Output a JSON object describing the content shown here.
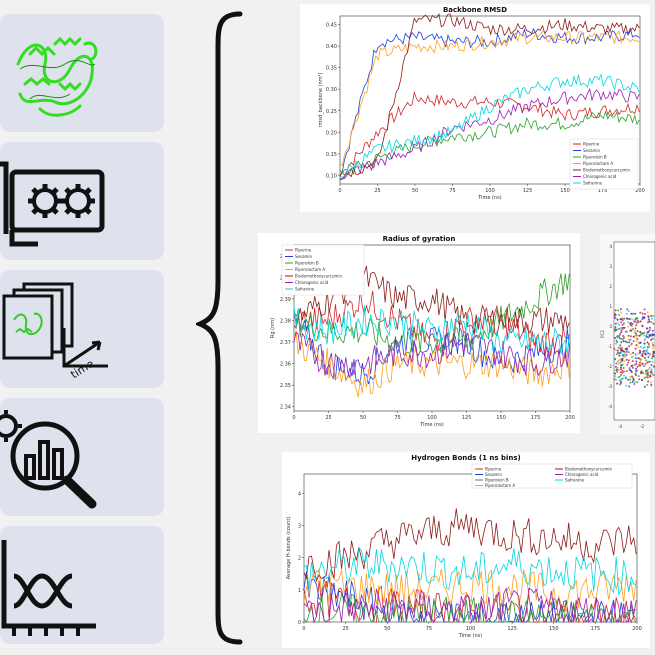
{
  "left_panels": [
    {
      "icon": "protein-structure-icon"
    },
    {
      "icon": "gpu-card-icon"
    },
    {
      "icon": "trajectory-frames-icon",
      "label": "time"
    },
    {
      "icon": "analysis-magnifier-icon"
    },
    {
      "icon": "line-graph-icon"
    }
  ],
  "colors": {
    "Piperine": "#d62728",
    "Sesamin": "#1f3fe0",
    "Piperolein B": "#2ca02c",
    "Piperolactam A": "#ff9f1c",
    "Bisdemethoxycurcumin": "#8c1d18",
    "Chlorogenic acid": "#9b1fb0",
    "Safranine": "#00d8e0"
  },
  "chart_data": [
    {
      "id": "rmsd",
      "type": "line",
      "title": "Backbone RMSD",
      "xlabel": "Time (ns)",
      "ylabel": "rmsd_backbone (nm²)",
      "xlim": [
        0,
        200
      ],
      "ylim": [
        0.08,
        0.47
      ],
      "xticks": [
        "0",
        "25",
        "50",
        "75",
        "100",
        "125",
        "150",
        "175",
        "200"
      ],
      "yticks": [
        "0.10",
        "0.15",
        "0.20",
        "0.25",
        "0.30",
        "0.35",
        "0.40",
        "0.45"
      ],
      "legend": [
        "Piperine",
        "Sesamin",
        "Piperolein B",
        "Piperolactam A",
        "Bisdemethoxycurcumin",
        "Chlorogenic acid",
        "Safranine"
      ],
      "legend_position": "bottom-right",
      "series": [
        {
          "name": "Piperine",
          "x": [
            0,
            25,
            50,
            75,
            100,
            125,
            150,
            175,
            200
          ],
          "values": [
            0.1,
            0.2,
            0.28,
            0.27,
            0.27,
            0.26,
            0.24,
            0.25,
            0.26
          ]
        },
        {
          "name": "Sesamin",
          "x": [
            0,
            25,
            50,
            75,
            100,
            125,
            150,
            175,
            200
          ],
          "values": [
            0.1,
            0.41,
            0.42,
            0.41,
            0.41,
            0.43,
            0.42,
            0.42,
            0.43
          ]
        },
        {
          "name": "Piperolein B",
          "x": [
            0,
            25,
            50,
            75,
            100,
            125,
            150,
            175,
            200
          ],
          "values": [
            0.1,
            0.14,
            0.17,
            0.19,
            0.2,
            0.22,
            0.22,
            0.24,
            0.23
          ]
        },
        {
          "name": "Piperolactam A",
          "x": [
            0,
            25,
            50,
            75,
            100,
            125,
            150,
            175,
            200
          ],
          "values": [
            0.12,
            0.38,
            0.4,
            0.4,
            0.41,
            0.42,
            0.42,
            0.42,
            0.42
          ]
        },
        {
          "name": "Bisdemethoxycurcumin",
          "x": [
            0,
            25,
            50,
            75,
            100,
            125,
            150,
            175,
            200
          ],
          "values": [
            0.1,
            0.13,
            0.46,
            0.46,
            0.44,
            0.44,
            0.45,
            0.44,
            0.44
          ]
        },
        {
          "name": "Chlorogenic acid",
          "x": [
            0,
            25,
            50,
            75,
            100,
            125,
            150,
            175,
            200
          ],
          "values": [
            0.1,
            0.13,
            0.16,
            0.21,
            0.23,
            0.26,
            0.28,
            0.29,
            0.28
          ]
        },
        {
          "name": "Safranine",
          "x": [
            0,
            25,
            50,
            75,
            100,
            125,
            150,
            175,
            200
          ],
          "values": [
            0.1,
            0.16,
            0.18,
            0.2,
            0.26,
            0.3,
            0.32,
            0.32,
            0.3
          ]
        }
      ]
    },
    {
      "id": "rg",
      "type": "line",
      "title": "Radius of gyration",
      "xlabel": "Time (ns)",
      "ylabel": "Rg (nm)",
      "xlim": [
        0,
        200
      ],
      "ylim": [
        2.338,
        2.415
      ],
      "xticks": [
        "0",
        "25",
        "50",
        "75",
        "100",
        "125",
        "150",
        "175",
        "200"
      ],
      "yticks": [
        "2.34",
        "2.35",
        "2.36",
        "2.37",
        "2.38",
        "2.39",
        "2.40",
        "2.41"
      ],
      "legend": [
        "Piperine",
        "Sesamin",
        "Piperolein B",
        "Piperolactam A",
        "Bisdemethoxycurcumin",
        "Chlorogenic acid",
        "Safranine"
      ],
      "legend_position": "top-left",
      "series": [
        {
          "name": "Piperine",
          "x": [
            0,
            25,
            50,
            75,
            100,
            125,
            150,
            175,
            200
          ],
          "values": [
            2.38,
            2.38,
            2.39,
            2.38,
            2.37,
            2.38,
            2.38,
            2.37,
            2.37
          ]
        },
        {
          "name": "Sesamin",
          "x": [
            0,
            25,
            50,
            75,
            100,
            125,
            150,
            175,
            200
          ],
          "values": [
            2.38,
            2.36,
            2.355,
            2.37,
            2.37,
            2.37,
            2.36,
            2.365,
            2.37
          ]
        },
        {
          "name": "Piperolein B",
          "x": [
            0,
            25,
            50,
            75,
            100,
            125,
            150,
            175,
            200
          ],
          "values": [
            2.38,
            2.375,
            2.375,
            2.37,
            2.37,
            2.37,
            2.38,
            2.39,
            2.4
          ]
        },
        {
          "name": "Piperolactam A",
          "x": [
            0,
            25,
            50,
            75,
            100,
            125,
            150,
            175,
            200
          ],
          "values": [
            2.37,
            2.36,
            2.35,
            2.36,
            2.36,
            2.36,
            2.36,
            2.355,
            2.36
          ]
        },
        {
          "name": "Bisdemethoxycurcumin",
          "x": [
            0,
            25,
            50,
            75,
            100,
            125,
            150,
            175,
            200
          ],
          "values": [
            2.38,
            2.39,
            2.4,
            2.39,
            2.39,
            2.38,
            2.38,
            2.38,
            2.38
          ]
        },
        {
          "name": "Chlorogenic acid",
          "x": [
            0,
            25,
            50,
            75,
            100,
            125,
            150,
            175,
            200
          ],
          "values": [
            2.37,
            2.36,
            2.36,
            2.365,
            2.365,
            2.37,
            2.365,
            2.36,
            2.365
          ]
        },
        {
          "name": "Safranine",
          "x": [
            0,
            25,
            50,
            75,
            100,
            125,
            150,
            175,
            200
          ],
          "values": [
            2.38,
            2.375,
            2.38,
            2.38,
            2.375,
            2.38,
            2.37,
            2.37,
            2.37
          ]
        }
      ]
    },
    {
      "id": "hbonds",
      "type": "line",
      "title": "Hydrogen Bonds (1 ns bins)",
      "xlabel": "Time (ns)",
      "ylabel": "Average H-bonds (count)",
      "xlim": [
        0,
        200
      ],
      "ylim": [
        0,
        4.6
      ],
      "xticks": [
        "0",
        "25",
        "50",
        "75",
        "100",
        "125",
        "150",
        "175",
        "200"
      ],
      "yticks": [
        "0",
        "1",
        "2",
        "3",
        "4"
      ],
      "legend": [
        "Piperine",
        "Sesamin",
        "Piperolein B",
        "Piperolactam A",
        "Bisdemethoxycurcumin",
        "Chlorogenic acid",
        "Safranine"
      ],
      "legend_position": "top",
      "series": [
        {
          "name": "Piperine",
          "x": [
            0,
            25,
            50,
            75,
            100,
            125,
            150,
            175,
            200
          ],
          "values": [
            0.8,
            0.6,
            0.5,
            0.4,
            0.3,
            0.3,
            0.2,
            0.2,
            0.2
          ]
        },
        {
          "name": "Sesamin",
          "x": [
            0,
            25,
            50,
            75,
            100,
            125,
            150,
            175,
            200
          ],
          "values": [
            1.0,
            0.8,
            0.3,
            0.2,
            0.1,
            0.1,
            0.1,
            0.1,
            0.1
          ]
        },
        {
          "name": "Piperolein B",
          "x": [
            0,
            25,
            50,
            75,
            100,
            125,
            150,
            175,
            200
          ],
          "values": [
            0.4,
            0.3,
            0.2,
            0.2,
            0.2,
            0.1,
            0.2,
            0.1,
            0.1
          ]
        },
        {
          "name": "Piperolactam A",
          "x": [
            0,
            25,
            50,
            75,
            100,
            125,
            150,
            175,
            200
          ],
          "values": [
            1.2,
            1.1,
            1.0,
            1.0,
            1.2,
            1.1,
            0.9,
            1.0,
            1.2
          ]
        },
        {
          "name": "Bisdemethoxycurcumin",
          "x": [
            0,
            25,
            50,
            75,
            100,
            125,
            150,
            175,
            200
          ],
          "values": [
            1.8,
            2.0,
            2.5,
            2.8,
            3.0,
            2.7,
            2.6,
            2.4,
            2.6
          ]
        },
        {
          "name": "Chlorogenic acid",
          "x": [
            0,
            25,
            50,
            75,
            100,
            125,
            150,
            175,
            200
          ],
          "values": [
            0.3,
            0.4,
            0.5,
            0.4,
            0.3,
            0.5,
            0.4,
            0.3,
            0.3
          ]
        },
        {
          "name": "Safranine",
          "x": [
            0,
            25,
            50,
            75,
            100,
            125,
            150,
            175,
            200
          ],
          "values": [
            1.5,
            1.7,
            1.8,
            1.7,
            1.5,
            1.8,
            1.6,
            1.5,
            1.4
          ]
        }
      ]
    },
    {
      "id": "pca",
      "type": "scatter",
      "xlabel": "",
      "ylabel": "PC2",
      "xticks": [
        "-4",
        "-2"
      ],
      "yticks": [
        "4",
        "3",
        "2",
        "1",
        "0",
        "-1",
        "-2",
        "-3",
        "-4"
      ]
    }
  ]
}
